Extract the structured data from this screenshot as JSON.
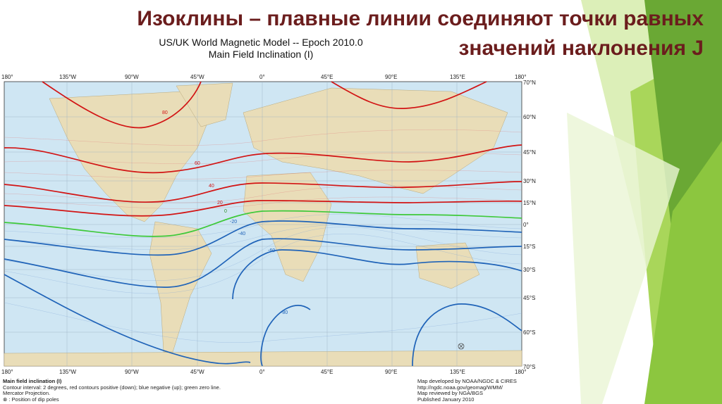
{
  "slide": {
    "title": "Изоклины – плавные линии соединяют точки равных значений наклонения J"
  },
  "map": {
    "heading_line1": "US/UK World Magnetic Model -- Epoch 2010.0",
    "heading_line2": "Main Field Inclination (I)",
    "longitude_ticks": [
      "180°",
      "135°W",
      "90°W",
      "45°W",
      "0°",
      "45°E",
      "90°E",
      "135°E",
      "180°"
    ],
    "latitude_ticks": [
      "70°N",
      "60°N",
      "45°N",
      "30°N",
      "15°N",
      "0°",
      "15°S",
      "30°S",
      "45°S",
      "60°S",
      "70°S"
    ],
    "contour_labels": [
      "80",
      "60",
      "40",
      "20",
      "0",
      "-20",
      "-40",
      "-60",
      "-80"
    ],
    "colors": {
      "positive": "#d21414",
      "negative": "#1f63b8",
      "zero": "#3ec93a",
      "ocean": "#cfe6f3",
      "land": "#e9ddb8"
    },
    "legend": {
      "title": "Main field inclination (I)",
      "line1": "Contour interval: 2 degrees, red contours positive (down); blue negative (up); green zero line.",
      "line2": "Mercator Projection.",
      "line3": "⊗ : Position of dip poles"
    },
    "credits": {
      "line1": "Map developed by NOAA/NGDC & CIRES",
      "line2": "http://ngdc.noaa.gov/geomag/WMM/",
      "line3": "Map reviewed by NGA/BGS",
      "line4": "Published January 2010"
    }
  }
}
